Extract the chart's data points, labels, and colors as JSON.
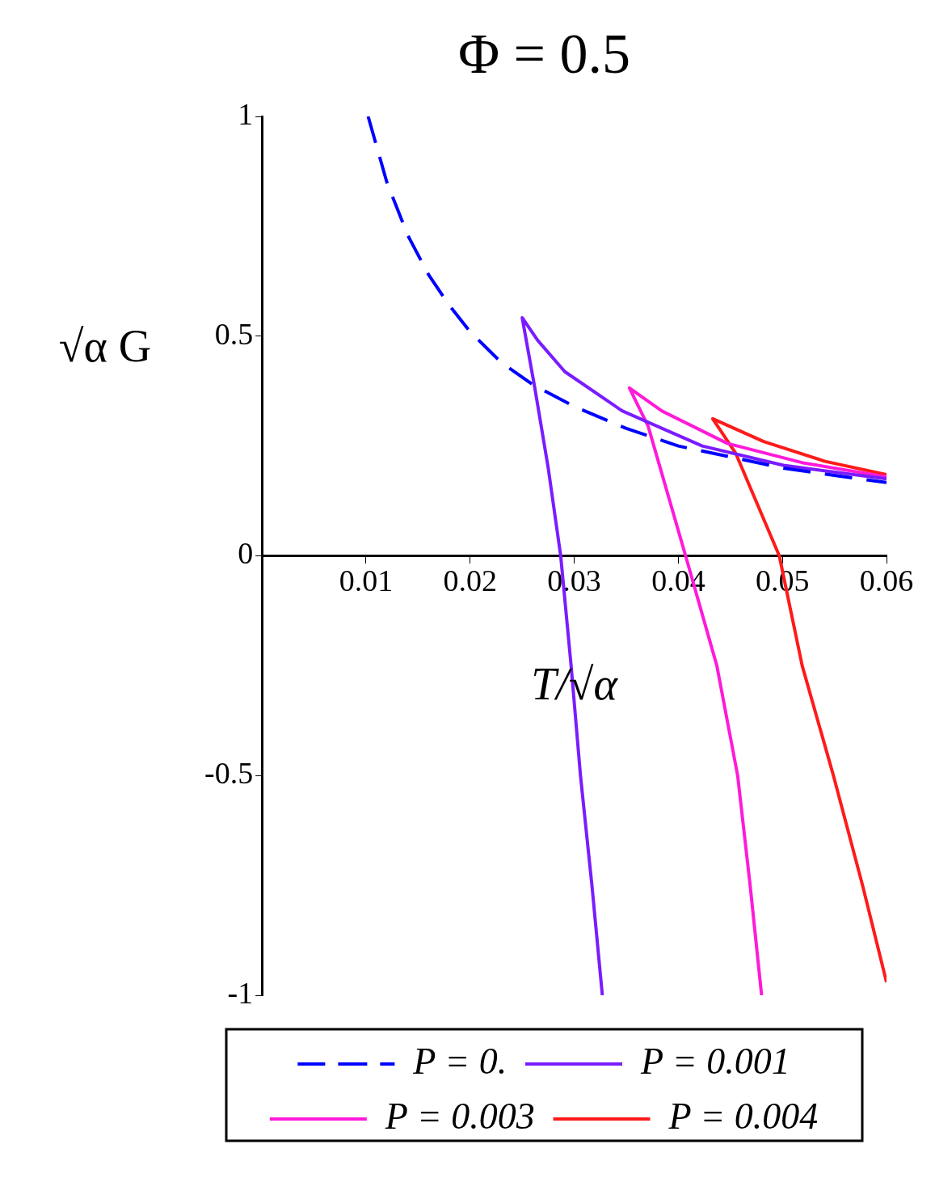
{
  "chart_data": {
    "type": "line",
    "title": "Φ = 0.5",
    "xlabel": "T/√α",
    "ylabel": "√α G",
    "xlim": [
      0,
      0.06
    ],
    "xticks": [
      0.01,
      0.02,
      0.03,
      0.04,
      0.05,
      0.06
    ],
    "ylim": [
      -1,
      1
    ],
    "yticks": [
      -1,
      -0.5,
      0,
      0.5,
      1
    ],
    "grid": false,
    "legend": "bottom",
    "marker": "none",
    "series": [
      {
        "name": "P = 0.",
        "color": "#0000ff",
        "line_style": "dashed",
        "x": [
          0.0102,
          0.012,
          0.014,
          0.016,
          0.018,
          0.02,
          0.023,
          0.026,
          0.03,
          0.035,
          0.04,
          0.045,
          0.05,
          0.055,
          0.06
        ],
        "values": [
          1.0,
          0.85,
          0.73,
          0.64,
          0.57,
          0.51,
          0.44,
          0.39,
          0.34,
          0.29,
          0.25,
          0.225,
          0.2,
          0.183,
          0.167
        ]
      },
      {
        "name": "P = 0.001",
        "color": "#7a1cff",
        "line_style": "solid",
        "x": [
          0.0327,
          0.0317,
          0.0306,
          0.0297,
          0.0287,
          0.0275,
          0.0262,
          0.025,
          0.0265,
          0.0291,
          0.0346,
          0.0423,
          0.0501,
          0.06
        ],
        "values": [
          -1,
          -0.75,
          -0.5,
          -0.25,
          0,
          0.2,
          0.384,
          0.542,
          0.49,
          0.419,
          0.33,
          0.25,
          0.206,
          0.175
        ]
      },
      {
        "name": "P = 0.003",
        "color": "#ff1ad9",
        "line_style": "solid",
        "x": [
          0.048,
          0.0469,
          0.0457,
          0.0437,
          0.0407,
          0.0371,
          0.0353,
          0.0384,
          0.0447,
          0.0521,
          0.06
        ],
        "values": [
          -1,
          -0.75,
          -0.5,
          -0.25,
          0,
          0.295,
          0.382,
          0.33,
          0.256,
          0.211,
          0.18
        ]
      },
      {
        "name": "P = 0.004",
        "color": "#ff1a1a",
        "line_style": "solid",
        "x": [
          0.06,
          0.0577,
          0.0549,
          0.0519,
          0.0497,
          0.0455,
          0.0433,
          0.0482,
          0.0541,
          0.06
        ],
        "values": [
          -0.97,
          -0.75,
          -0.5,
          -0.25,
          0,
          0.234,
          0.312,
          0.26,
          0.215,
          0.185
        ]
      }
    ]
  }
}
